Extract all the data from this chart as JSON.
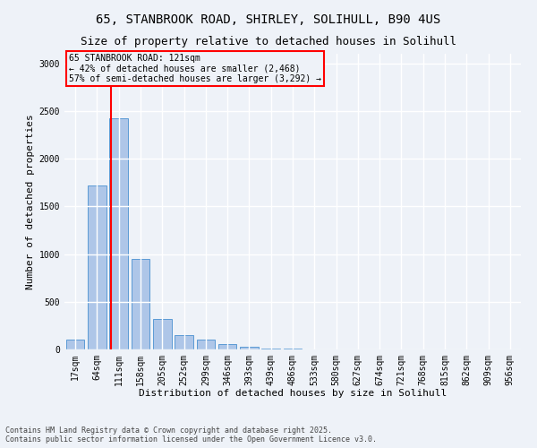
{
  "title_line1": "65, STANBROOK ROAD, SHIRLEY, SOLIHULL, B90 4US",
  "title_line2": "Size of property relative to detached houses in Solihull",
  "xlabel": "Distribution of detached houses by size in Solihull",
  "ylabel": "Number of detached properties",
  "categories": [
    "17sqm",
    "64sqm",
    "111sqm",
    "158sqm",
    "205sqm",
    "252sqm",
    "299sqm",
    "346sqm",
    "393sqm",
    "439sqm",
    "486sqm",
    "533sqm",
    "580sqm",
    "627sqm",
    "674sqm",
    "721sqm",
    "768sqm",
    "815sqm",
    "862sqm",
    "909sqm",
    "956sqm"
  ],
  "values": [
    100,
    1720,
    2420,
    950,
    320,
    150,
    100,
    60,
    30,
    10,
    5,
    3,
    2,
    2,
    1,
    1,
    0,
    0,
    0,
    0,
    0
  ],
  "bar_color": "#aec6e8",
  "bar_edge_color": "#5b9bd5",
  "background_color": "#eef2f8",
  "grid_color": "#ffffff",
  "annotation_line1": "65 STANBROOK ROAD: 121sqm",
  "annotation_line2": "← 42% of detached houses are smaller (2,468)",
  "annotation_line3": "57% of semi-detached houses are larger (3,292) →",
  "ylim": [
    0,
    3100
  ],
  "yticks": [
    0,
    500,
    1000,
    1500,
    2000,
    2500,
    3000
  ],
  "footer_line1": "Contains HM Land Registry data © Crown copyright and database right 2025.",
  "footer_line2": "Contains public sector information licensed under the Open Government Licence v3.0.",
  "title_fontsize": 10,
  "axis_label_fontsize": 8,
  "tick_fontsize": 7,
  "footer_fontsize": 6
}
